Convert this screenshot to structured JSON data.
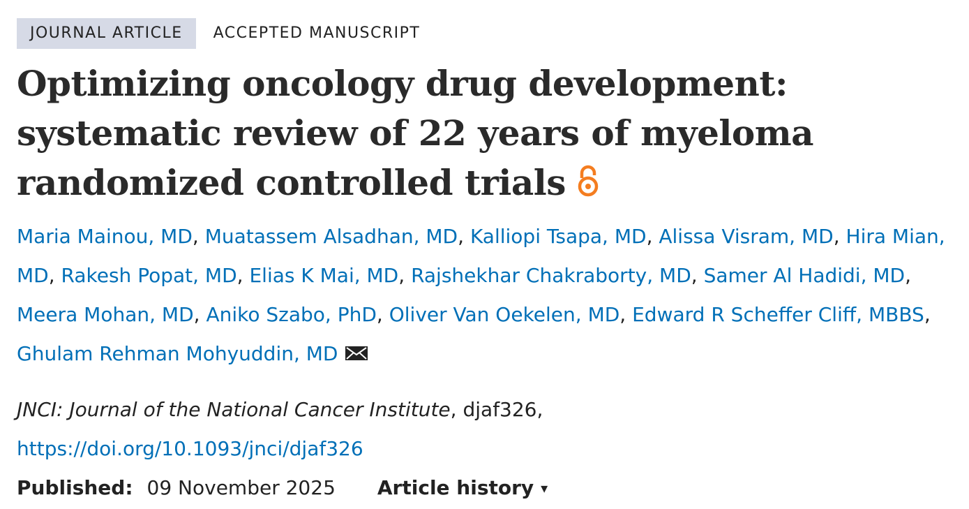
{
  "tags": {
    "type": "JOURNAL ARTICLE",
    "status": "ACCEPTED MANUSCRIPT"
  },
  "article": {
    "title": "Optimizing oncology drug development: systematic review of 22 years of myeloma randomized controlled trials",
    "open_access_icon": "open-access-icon",
    "access_color": "#f47d20"
  },
  "authors": [
    "Maria Mainou, MD",
    "Muatassem Alsadhan, MD",
    "Kalliopi Tsapa, MD",
    "Alissa Visram, MD",
    "Hira Mian, MD",
    "Rakesh Popat, MD",
    "Elias K Mai, MD",
    "Rajshekhar Chakraborty, MD",
    "Samer Al Hadidi, MD",
    "Meera Mohan, MD",
    "Aniko Szabo, PhD",
    "Oliver Van Oekelen, MD",
    "Edward R Scheffer Cliff, MBBS",
    "Ghulam Rehman Mohyuddin, MD"
  ],
  "author_separator": ", ",
  "corresponding_icon": "envelope-icon",
  "citation": {
    "journal": "JNCI: Journal of the National Cancer Institute",
    "article_id": "djaf326,",
    "doi": "https://doi.org/10.1093/jnci/djaf326"
  },
  "published": {
    "label": "Published:",
    "date": "09 November 2025"
  },
  "history": {
    "label": "Article history",
    "caret": "▾"
  },
  "colors": {
    "link": "#006fb7",
    "tag_bg": "#d6dae6",
    "text": "#222222"
  }
}
